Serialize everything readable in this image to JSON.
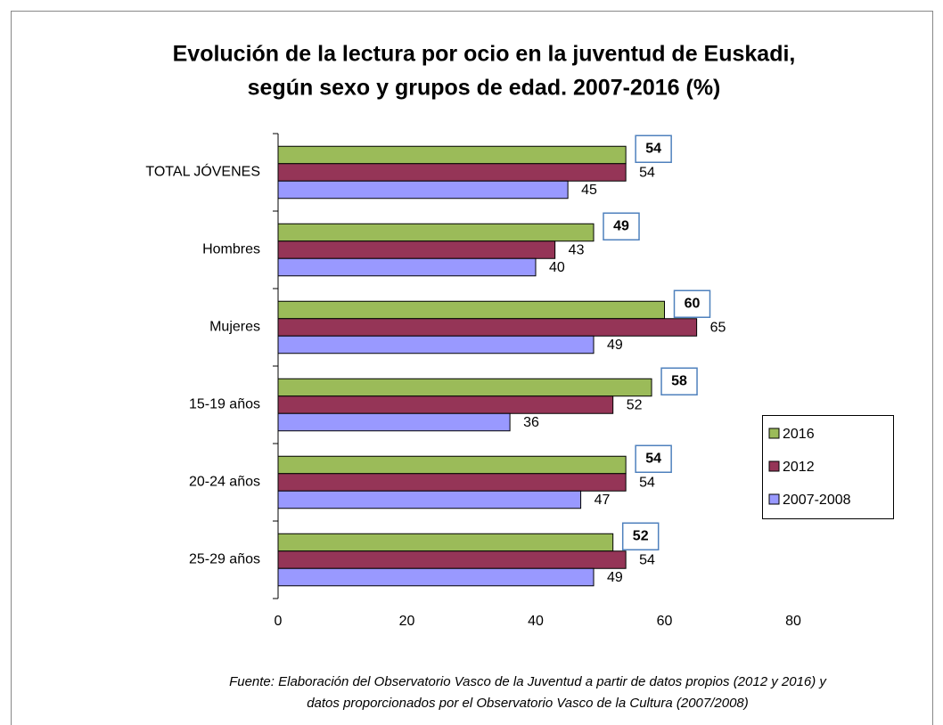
{
  "chart_data": {
    "type": "hbar",
    "title": [
      "Evolución de la lectura por ocio en la juventud de Euskadi,",
      "según sexo y grupos de edad. 2007-2016 (%)"
    ],
    "categories": [
      "TOTAL JÓVENES",
      "Hombres",
      "Mujeres",
      "15-19 años",
      "20-24 años",
      "25-29 años"
    ],
    "series": [
      {
        "name": "2016",
        "color": "#9bbb59",
        "values": [
          54,
          49,
          60,
          58,
          54,
          52
        ]
      },
      {
        "name": "2012",
        "color": "#953557",
        "values": [
          54,
          43,
          65,
          52,
          54,
          54
        ]
      },
      {
        "name": "2007-2008",
        "color": "#9999ff",
        "values": [
          45,
          40,
          49,
          36,
          47,
          49
        ]
      }
    ],
    "xlim": [
      0,
      80
    ],
    "xticks": [
      0,
      20,
      40,
      60,
      80
    ],
    "legend": "right",
    "source": [
      "Fuente: Elaboración del Observatorio Vasco de la Juventud a partir de datos propios (2012 y 2016) y",
      "datos proporcionados por el Observatorio Vasco de la Cultura (2007/2008)"
    ]
  }
}
